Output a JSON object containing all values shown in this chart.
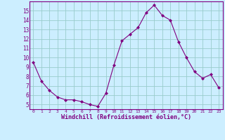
{
  "x": [
    0,
    1,
    2,
    3,
    4,
    5,
    6,
    7,
    8,
    9,
    10,
    11,
    12,
    13,
    14,
    15,
    16,
    17,
    18,
    19,
    20,
    21,
    22,
    23
  ],
  "y": [
    9.5,
    7.5,
    6.5,
    5.8,
    5.5,
    5.5,
    5.3,
    5.0,
    4.8,
    6.2,
    9.2,
    11.8,
    12.5,
    13.2,
    14.8,
    15.6,
    14.5,
    14.0,
    11.7,
    10.0,
    8.5,
    7.8,
    8.2,
    6.8
  ],
  "line_color": "#800080",
  "marker": "D",
  "marker_size": 2,
  "bg_color": "#cceeff",
  "grid_color": "#99cccc",
  "xlabel": "Windchill (Refroidissement éolien,°C)",
  "xlabel_color": "#800080",
  "tick_color": "#800080",
  "axis_color": "#800080",
  "ylim": [
    4.5,
    16
  ],
  "xlim": [
    -0.5,
    23.5
  ],
  "yticks": [
    5,
    6,
    7,
    8,
    9,
    10,
    11,
    12,
    13,
    14,
    15
  ],
  "xticks": [
    0,
    1,
    2,
    3,
    4,
    5,
    6,
    7,
    8,
    9,
    10,
    11,
    12,
    13,
    14,
    15,
    16,
    17,
    18,
    19,
    20,
    21,
    22,
    23
  ]
}
